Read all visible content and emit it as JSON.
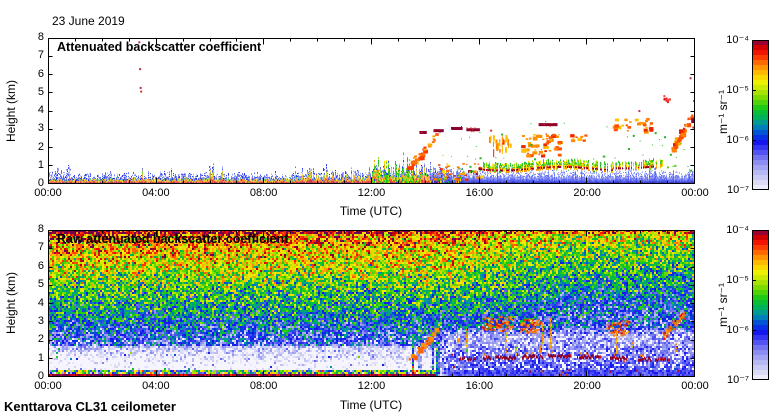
{
  "header": {
    "date_label": "23 June 2019",
    "station_label": "Kenttarova CL31 ceilometer"
  },
  "colors": {
    "background": "#ffffff",
    "frame": "#000000",
    "text": "#000000",
    "surface_maroon": "#7a0040",
    "cloud_maroon": "#8a0030",
    "cloud_orange": "#ff8000",
    "noise_blue": "#2a3ae8"
  },
  "colormap_stops": [
    [
      0.0,
      "#f6f4fd"
    ],
    [
      0.06,
      "#d8d8f6"
    ],
    [
      0.13,
      "#b0b2f2"
    ],
    [
      0.2,
      "#8084f0"
    ],
    [
      0.26,
      "#4a4af4"
    ],
    [
      0.32,
      "#1212ee"
    ],
    [
      0.38,
      "#0050d8"
    ],
    [
      0.43,
      "#0090b0"
    ],
    [
      0.48,
      "#00b060"
    ],
    [
      0.54,
      "#10c818"
    ],
    [
      0.6,
      "#66d800"
    ],
    [
      0.66,
      "#b4e400"
    ],
    [
      0.72,
      "#f2f200"
    ],
    [
      0.77,
      "#ffc800"
    ],
    [
      0.82,
      "#ff9000"
    ],
    [
      0.87,
      "#ff5000"
    ],
    [
      0.91,
      "#f81800"
    ],
    [
      0.95,
      "#d00000"
    ],
    [
      0.98,
      "#a00028"
    ],
    [
      1.0,
      "#6e0056"
    ]
  ],
  "chart_data": [
    {
      "type": "heatmap",
      "title": "Attenuated backscatter coefficient",
      "xlabel": "Time (UTC)",
      "ylabel": "Height (km)",
      "x_ticks": [
        "00:00",
        "04:00",
        "08:00",
        "12:00",
        "16:00",
        "20:00",
        "00:00"
      ],
      "x_range_hours": [
        0,
        24
      ],
      "x_major_tick_hours": 4,
      "x_minor_tick_hours": 1,
      "y_ticks": [
        "0",
        "1",
        "2",
        "3",
        "4",
        "5",
        "6",
        "7",
        "8"
      ],
      "y_range_km": [
        0,
        8
      ],
      "colorbar": {
        "unit": "m⁻¹ sr⁻¹",
        "tick_labels": [
          "10⁻⁴",
          "10⁻⁵",
          "10⁻⁶",
          "10⁻⁷"
        ],
        "scale": "log10",
        "range": [
          "1e-7",
          "1e-4"
        ]
      },
      "features": [
        {
          "name": "surface-aerosol-layer",
          "t": [
            0,
            14.6
          ],
          "h": [
            0,
            0.55
          ],
          "note": "multicolour boundary layer, maroon base line at 0 km"
        },
        {
          "name": "green-streaks",
          "t": [
            11.8,
            13.55
          ],
          "h": [
            0,
            1.9
          ]
        },
        {
          "name": "blue-noise-band",
          "t": [
            14.2,
            24
          ],
          "h": [
            0,
            0.75
          ]
        },
        {
          "name": "transition-spikes",
          "t": [
            13.6,
            15.35
          ],
          "h": [
            0,
            1.0
          ]
        },
        {
          "name": "layer-onset-blobs",
          "t": [
            14.3,
            16.15
          ],
          "h": [
            0.3,
            1.15
          ],
          "n": 55
        },
        {
          "name": "aerosol-layer-1km",
          "t": [
            16.15,
            22.85
          ],
          "h": [
            0.7,
            1.35
          ],
          "note": "green/yellow/orange band with maroon core"
        },
        {
          "name": "rising-plume",
          "t": [
            13.25,
            14.4
          ],
          "h": [
            0.85,
            2.7
          ],
          "n": 34
        },
        {
          "name": "cloud-cluster",
          "t": [
            16.35,
            17.15
          ],
          "h": [
            1.9,
            2.7
          ],
          "n": 26,
          "streaky": true
        },
        {
          "name": "cloud-cluster",
          "t": [
            17.55,
            19.0
          ],
          "h": [
            1.6,
            2.8
          ],
          "n": 60
        },
        {
          "name": "cloud-cluster",
          "t": [
            19.3,
            19.9
          ],
          "h": [
            2.3,
            2.75
          ],
          "n": 10
        },
        {
          "name": "cloud-cluster",
          "t": [
            20.9,
            22.35
          ],
          "h": [
            2.85,
            3.65
          ],
          "n": 30
        },
        {
          "name": "diagonal-cloud",
          "t": [
            23.12,
            23.92
          ],
          "h": [
            2.05,
            3.9
          ],
          "n": 38
        },
        {
          "name": "red-blob",
          "t": [
            22.82,
            23.05
          ],
          "h": [
            4.5,
            4.9
          ],
          "n": 9
        },
        {
          "name": "cloud-dashes-maroon",
          "segments": [
            [
              13.78,
              14.05,
              2.85
            ],
            [
              14.3,
              14.68,
              2.95
            ],
            [
              14.95,
              15.38,
              3.07
            ],
            [
              15.52,
              16.02,
              3.0
            ],
            [
              18.2,
              18.9,
              3.28
            ]
          ]
        },
        {
          "name": "red-dots",
          "points": [
            [
              3.35,
              7.82
            ],
            [
              3.38,
              6.35
            ],
            [
              3.4,
              5.32
            ],
            [
              3.42,
              5.12
            ],
            [
              16.4,
              2.98
            ],
            [
              23.8,
              5.85
            ],
            [
              23.93,
              4.6
            ],
            [
              23.9,
              3.15
            ],
            [
              21.9,
              4.05
            ]
          ]
        },
        {
          "name": "green-specks",
          "t": [
            13.9,
            24
          ],
          "h": [
            0.7,
            4.3
          ],
          "n": 75
        }
      ]
    },
    {
      "type": "heatmap",
      "title": "Raw attenuated backscatter coefficient",
      "xlabel": "Time (UTC)",
      "ylabel": "Height (km)",
      "x_ticks": [
        "00:00",
        "04:00",
        "08:00",
        "12:00",
        "16:00",
        "20:00",
        "00:00"
      ],
      "x_range_hours": [
        0,
        24
      ],
      "x_major_tick_hours": 4,
      "x_minor_tick_hours": 1,
      "y_ticks": [
        "0",
        "1",
        "2",
        "3",
        "4",
        "5",
        "6",
        "7",
        "8"
      ],
      "y_range_km": [
        0,
        8
      ],
      "colorbar": {
        "unit": "m⁻¹ sr⁻¹",
        "tick_labels": [
          "10⁻⁴",
          "10⁻⁵",
          "10⁻⁶",
          "10⁻⁷"
        ],
        "scale": "log10",
        "range": [
          "1e-7",
          "1e-4"
        ]
      },
      "noise_model": {
        "note": "background noise grows with height: near-white at 1 km, blue 1.5-2.5 km, green 3-4 km, yellow/orange 5-6 km, red/maroon 7-8 km; upper right softened toward green after 15 UTC",
        "surface_layer": {
          "t": [
            0,
            14.4
          ],
          "h": [
            0,
            0.4
          ]
        },
        "white_low_noise_band": {
          "t": [
            0,
            14.4
          ],
          "h": [
            0.4,
            1.7
          ]
        },
        "blue_low_fill": {
          "t": [
            14.4,
            24
          ],
          "h": [
            0,
            2.7
          ]
        },
        "top_edge_strip": {
          "h": [
            7.8,
            8
          ]
        }
      },
      "features": [
        {
          "name": "plume-echo",
          "t": [
            13.3,
            14.4
          ],
          "h": [
            0.9,
            2.6
          ],
          "n": 20
        },
        {
          "name": "cloud-cluster",
          "t": [
            16.1,
            17.2
          ],
          "h": [
            2.55,
            3.35
          ],
          "n": 24
        },
        {
          "name": "cloud-cluster",
          "t": [
            17.5,
            18.35
          ],
          "h": [
            2.45,
            3.2
          ],
          "n": 20
        },
        {
          "name": "cloud-cluster",
          "t": [
            20.7,
            21.6
          ],
          "h": [
            2.3,
            3.1
          ],
          "n": 16
        },
        {
          "name": "diagonal-cloud",
          "t": [
            22.75,
            23.6
          ],
          "h": [
            2.2,
            3.5
          ],
          "n": 26
        },
        {
          "name": "vertical-streaks",
          "t": [
            14.6,
            23.6
          ],
          "h": [
            1.0,
            2.8
          ],
          "n": 11
        },
        {
          "name": "layer-dashes-maroon",
          "segments": [
            [
              15.25,
              15.85,
              1.02
            ],
            [
              16.15,
              17.35,
              1.06
            ],
            [
              17.6,
              18.35,
              1.12
            ],
            [
              18.55,
              19.4,
              1.18
            ],
            [
              19.65,
              20.5,
              1.12
            ],
            [
              20.85,
              21.45,
              1.05
            ],
            [
              21.9,
              22.35,
              1.0
            ],
            [
              22.55,
              23.05,
              0.95
            ]
          ]
        },
        {
          "name": "red-specks-low",
          "t": [
            14.8,
            23.8
          ],
          "h": [
            0.1,
            1.4
          ],
          "n": 16
        }
      ]
    }
  ]
}
